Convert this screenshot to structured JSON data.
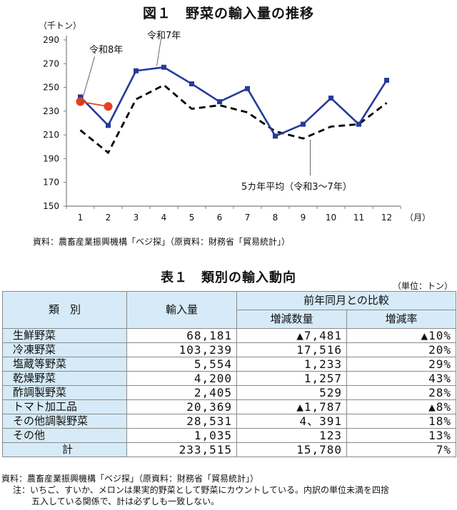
{
  "figure": {
    "title": "図１　野菜の輸入量の推移",
    "source": "資料：農畜産業振興機構「ベジ探」（原資料：財務省「貿易統計」）"
  },
  "chart_data": {
    "type": "line",
    "title": "図１　野菜の輸入量の推移",
    "ylabel": "（千トン）",
    "xlabel": "（月）",
    "ylim": [
      150,
      290
    ],
    "yticks": [
      150,
      170,
      190,
      210,
      230,
      250,
      270,
      290
    ],
    "categories": [
      "1",
      "2",
      "3",
      "4",
      "5",
      "6",
      "7",
      "8",
      "9",
      "10",
      "11",
      "12"
    ],
    "grid": false,
    "series": [
      {
        "name": "令和7年",
        "color": "#263a9a",
        "style": "solid-square-markers",
        "values": [
          242,
          218,
          264,
          267,
          253,
          238,
          249,
          209,
          219,
          241,
          219,
          256
        ]
      },
      {
        "name": "令和8年",
        "color": "#e8401c",
        "style": "solid-circle-markers",
        "values": [
          238,
          234,
          null,
          null,
          null,
          null,
          null,
          null,
          null,
          null,
          null,
          null
        ]
      },
      {
        "name": "5カ年平均（令和3～7年）",
        "color": "#000000",
        "style": "dashed",
        "values": [
          214,
          195,
          240,
          252,
          232,
          235,
          229,
          213,
          207,
          217,
          219,
          237
        ]
      }
    ],
    "annotations": [
      "令和8年",
      "令和7年",
      "5カ年平均（令和3～7年）"
    ]
  },
  "table": {
    "title": "表１　類別の輸入動向",
    "unit": "（単位：トン）",
    "headers": {
      "category": "類　別",
      "import_volume": "輸入量",
      "comparison": "前年同月との比較",
      "change_qty": "増減数量",
      "change_rate": "増減率"
    },
    "rows": [
      {
        "category": "生鮮野菜",
        "volume": "68,181",
        "change": "▲7,481",
        "rate": "▲10%"
      },
      {
        "category": "冷凍野菜",
        "volume": "103,239",
        "change": "17,516",
        "rate": "20%"
      },
      {
        "category": "塩蔵等野菜",
        "volume": "5,554",
        "change": "1,233",
        "rate": "29%"
      },
      {
        "category": "乾燥野菜",
        "volume": "4,200",
        "change": "1,257",
        "rate": "43%"
      },
      {
        "category": "酢調製野菜",
        "volume": "2,405",
        "change": "529",
        "rate": "28%"
      },
      {
        "category": "トマト加工品",
        "volume": "20,369",
        "change": "▲1,787",
        "rate": "▲8%"
      },
      {
        "category": "その他調製野菜",
        "volume": "28,531",
        "change": "4、391",
        "rate": "18%"
      },
      {
        "category": "その他",
        "volume": "1,035",
        "change": "123",
        "rate": "13%"
      }
    ],
    "total": {
      "category": "計",
      "volume": "233,515",
      "change": "15,780",
      "rate": "7%"
    },
    "source": "資料：農畜産業振興機構「ベジ探」（原資料：財務省「貿易統計」）",
    "note_line1": "注：いちご、すいか、メロンは果実的野菜として野菜にカウントしている。内訳の単位未満を四捨",
    "note_line2": "五入している関係で、計は必ずしも一致しない。"
  }
}
